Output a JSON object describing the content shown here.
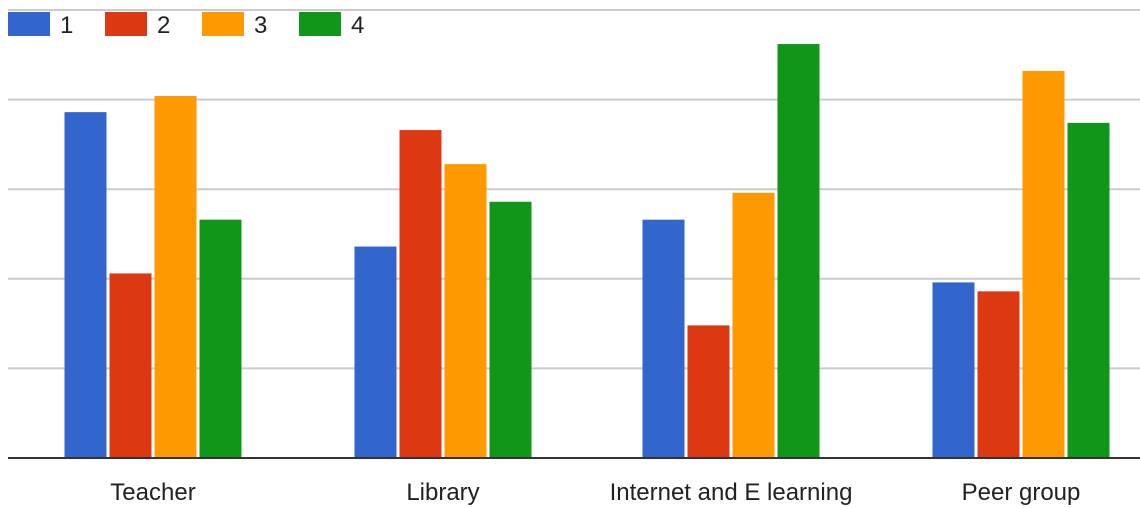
{
  "chart_data": {
    "type": "bar",
    "title": "",
    "xlabel": "",
    "ylabel": "",
    "categories": [
      "Teacher",
      "Library",
      "Internet and E learning",
      "Peer group"
    ],
    "series": [
      {
        "name": "1",
        "color": "#3366cc",
        "values": [
          19.3,
          11.8,
          13.3,
          9.8
        ]
      },
      {
        "name": "2",
        "color": "#dc3912",
        "values": [
          10.3,
          18.3,
          7.4,
          9.3
        ]
      },
      {
        "name": "3",
        "color": "#ff9900",
        "values": [
          20.2,
          16.4,
          14.8,
          21.6
        ]
      },
      {
        "name": "4",
        "color": "#109618",
        "values": [
          13.3,
          14.3,
          23.1,
          18.7
        ]
      }
    ],
    "ylim": [
      0,
      25
    ],
    "y_gridlines": [
      0,
      5,
      10,
      15,
      20,
      25
    ],
    "y_tick_labels_shown": false,
    "grid": true,
    "legend_position": "top-left"
  }
}
